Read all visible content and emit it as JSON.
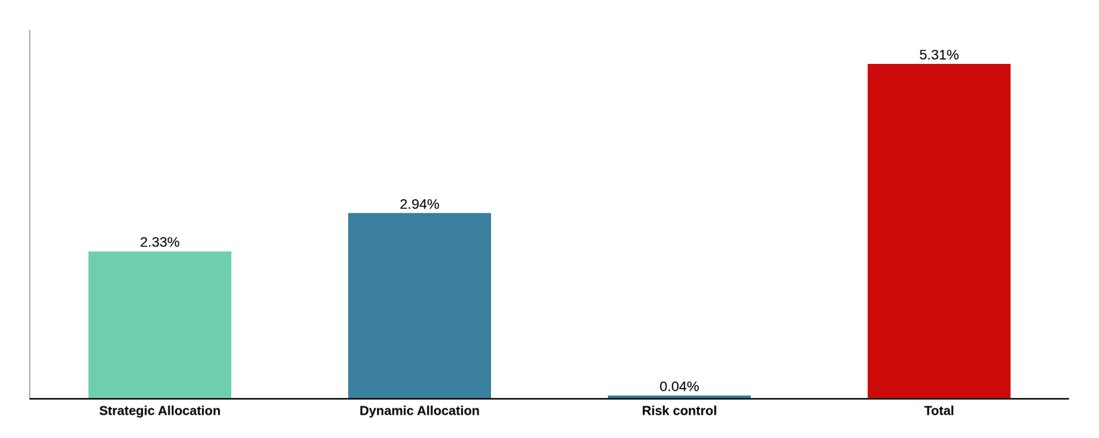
{
  "chart_data": {
    "type": "bar",
    "categories": [
      "Strategic Allocation",
      "Dynamic Allocation",
      "Risk control",
      "Total"
    ],
    "values": [
      2.33,
      2.94,
      0.04,
      5.31
    ],
    "value_labels": [
      "2.33%",
      "2.94%",
      "0.04%",
      "5.31%"
    ],
    "colors": [
      "#6ecfb0",
      "#3a7f9e",
      "#2a7fa0",
      "#cc0a0a"
    ],
    "ylim": [
      0,
      5.85
    ],
    "grid": false,
    "data_labels": true,
    "tick_labels": "x"
  }
}
